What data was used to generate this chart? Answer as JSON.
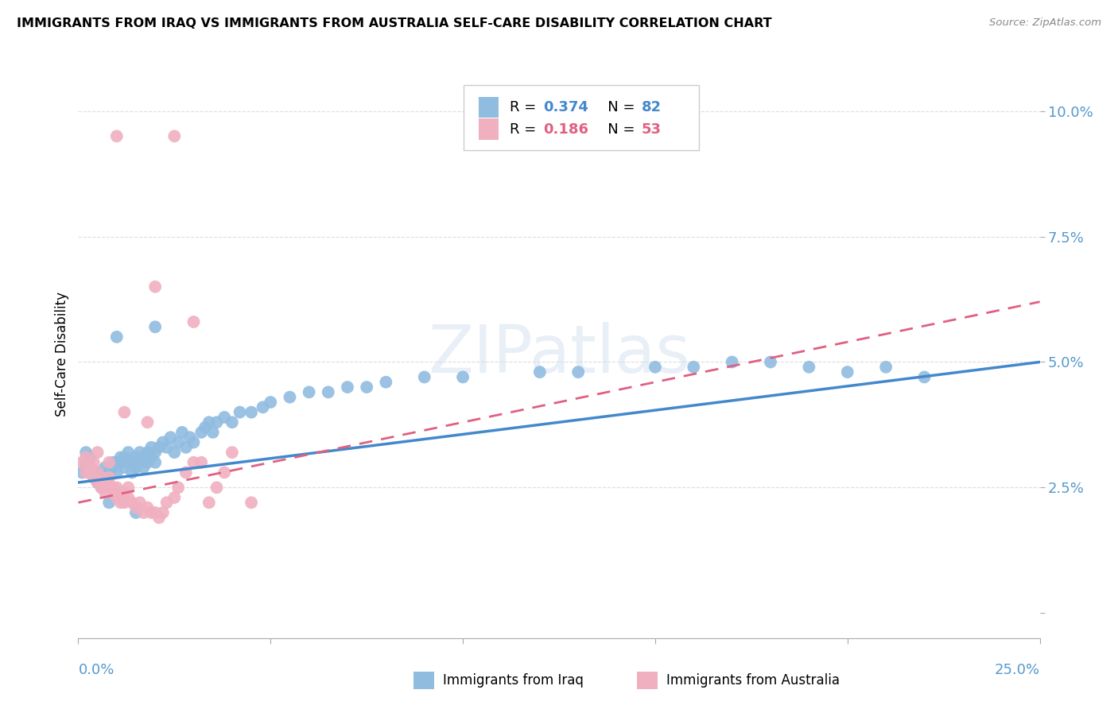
{
  "title": "IMMIGRANTS FROM IRAQ VS IMMIGRANTS FROM AUSTRALIA SELF-CARE DISABILITY CORRELATION CHART",
  "source": "Source: ZipAtlas.com",
  "ylabel": "Self-Care Disability",
  "xlim": [
    0.0,
    0.25
  ],
  "ylim": [
    -0.005,
    0.108
  ],
  "yticks": [
    0.0,
    0.025,
    0.05,
    0.075,
    0.1
  ],
  "ytick_labels": [
    "",
    "2.5%",
    "5.0%",
    "7.5%",
    "10.0%"
  ],
  "xtick_positions": [
    0.0,
    0.05,
    0.1,
    0.15,
    0.2,
    0.25
  ],
  "iraq_color": "#90bce0",
  "australia_color": "#f0b0c0",
  "trendline_iraq_color": "#4488cc",
  "trendline_australia_color": "#e06080",
  "tick_color": "#5599cc",
  "iraq_x": [
    0.001,
    0.002,
    0.002,
    0.003,
    0.003,
    0.004,
    0.004,
    0.005,
    0.005,
    0.006,
    0.006,
    0.007,
    0.007,
    0.008,
    0.008,
    0.009,
    0.009,
    0.01,
    0.01,
    0.011,
    0.011,
    0.012,
    0.012,
    0.013,
    0.013,
    0.014,
    0.014,
    0.015,
    0.015,
    0.016,
    0.016,
    0.017,
    0.017,
    0.018,
    0.018,
    0.019,
    0.019,
    0.02,
    0.02,
    0.021,
    0.022,
    0.023,
    0.024,
    0.025,
    0.026,
    0.027,
    0.028,
    0.029,
    0.03,
    0.032,
    0.033,
    0.034,
    0.035,
    0.036,
    0.038,
    0.04,
    0.042,
    0.045,
    0.048,
    0.05,
    0.055,
    0.06,
    0.065,
    0.07,
    0.075,
    0.08,
    0.09,
    0.1,
    0.12,
    0.13,
    0.15,
    0.16,
    0.17,
    0.18,
    0.19,
    0.2,
    0.21,
    0.22,
    0.01,
    0.02,
    0.008,
    0.015
  ],
  "iraq_y": [
    0.028,
    0.03,
    0.032,
    0.029,
    0.031,
    0.028,
    0.027,
    0.026,
    0.028,
    0.025,
    0.027,
    0.026,
    0.029,
    0.027,
    0.028,
    0.029,
    0.03,
    0.03,
    0.028,
    0.031,
    0.03,
    0.029,
    0.031,
    0.03,
    0.032,
    0.028,
    0.03,
    0.029,
    0.031,
    0.03,
    0.032,
    0.031,
    0.029,
    0.032,
    0.03,
    0.031,
    0.033,
    0.03,
    0.032,
    0.033,
    0.034,
    0.033,
    0.035,
    0.032,
    0.034,
    0.036,
    0.033,
    0.035,
    0.034,
    0.036,
    0.037,
    0.038,
    0.036,
    0.038,
    0.039,
    0.038,
    0.04,
    0.04,
    0.041,
    0.042,
    0.043,
    0.044,
    0.044,
    0.045,
    0.045,
    0.046,
    0.047,
    0.047,
    0.048,
    0.048,
    0.049,
    0.049,
    0.05,
    0.05,
    0.049,
    0.048,
    0.049,
    0.047,
    0.055,
    0.057,
    0.022,
    0.02
  ],
  "australia_x": [
    0.001,
    0.002,
    0.002,
    0.003,
    0.003,
    0.004,
    0.004,
    0.005,
    0.005,
    0.006,
    0.006,
    0.007,
    0.007,
    0.008,
    0.008,
    0.009,
    0.009,
    0.01,
    0.01,
    0.011,
    0.011,
    0.012,
    0.012,
    0.013,
    0.013,
    0.014,
    0.015,
    0.016,
    0.017,
    0.018,
    0.019,
    0.02,
    0.021,
    0.022,
    0.023,
    0.025,
    0.026,
    0.028,
    0.03,
    0.032,
    0.034,
    0.036,
    0.038,
    0.04,
    0.045,
    0.01,
    0.02,
    0.025,
    0.03,
    0.005,
    0.008,
    0.012,
    0.018
  ],
  "australia_y": [
    0.03,
    0.028,
    0.031,
    0.029,
    0.028,
    0.03,
    0.027,
    0.026,
    0.028,
    0.025,
    0.027,
    0.026,
    0.024,
    0.025,
    0.027,
    0.024,
    0.025,
    0.025,
    0.023,
    0.022,
    0.024,
    0.022,
    0.024,
    0.023,
    0.025,
    0.022,
    0.021,
    0.022,
    0.02,
    0.021,
    0.02,
    0.02,
    0.019,
    0.02,
    0.022,
    0.023,
    0.025,
    0.028,
    0.03,
    0.03,
    0.022,
    0.025,
    0.028,
    0.032,
    0.022,
    0.095,
    0.065,
    0.095,
    0.058,
    0.032,
    0.03,
    0.04,
    0.038
  ],
  "iraq_trendline_x0": 0.0,
  "iraq_trendline_x1": 0.25,
  "iraq_trendline_y0": 0.026,
  "iraq_trendline_y1": 0.05,
  "aus_trendline_x0": 0.0,
  "aus_trendline_x1": 0.25,
  "aus_trendline_y0": 0.022,
  "aus_trendline_y1": 0.062,
  "legend_r1": "R = 0.374",
  "legend_n1": "N = 82",
  "legend_r2": "R = 0.186",
  "legend_n2": "N = 53",
  "legend_label1": "Immigrants from Iraq",
  "legend_label2": "Immigrants from Australia",
  "watermark_text": "ZIPatlas"
}
